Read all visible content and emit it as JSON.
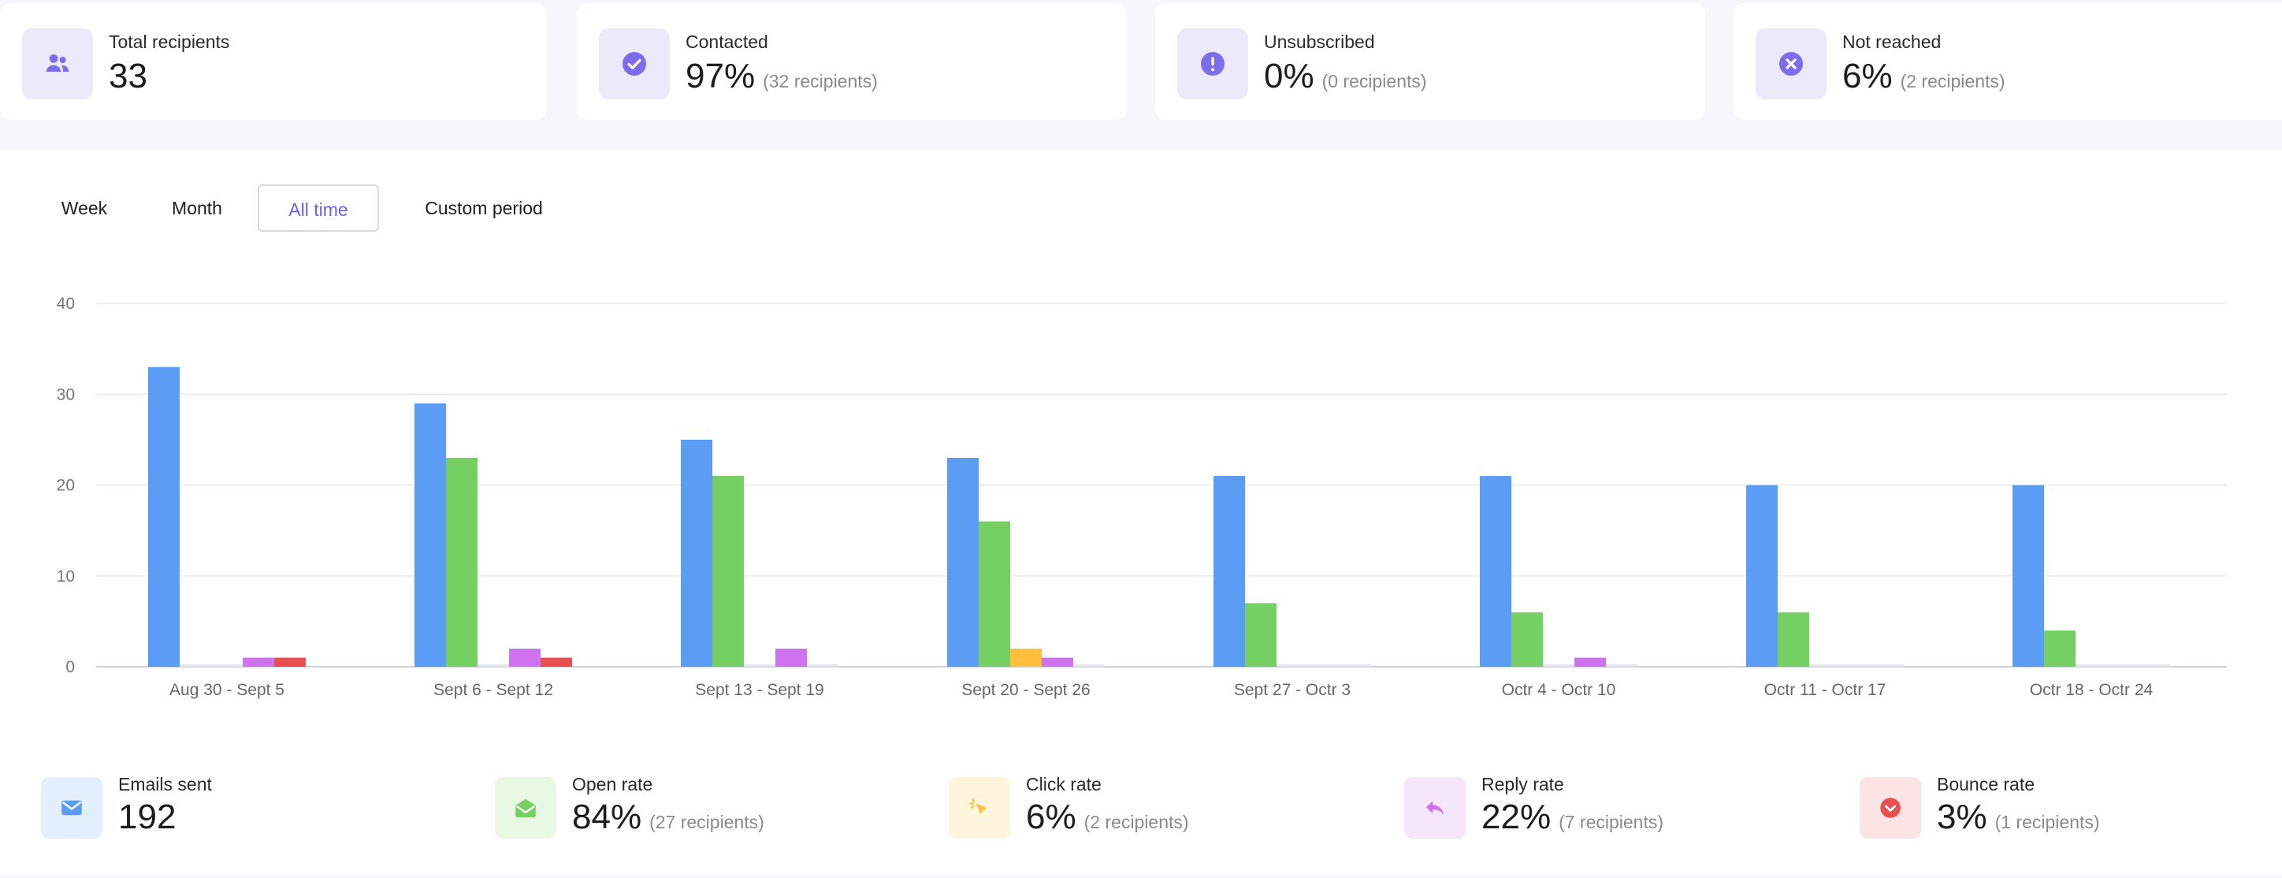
{
  "stats": [
    {
      "label": "Total recipients",
      "value": "33",
      "sub": "",
      "icon": "users-icon"
    },
    {
      "label": "Contacted",
      "value": "97%",
      "sub": "(32 recipients)",
      "icon": "check-circle-icon"
    },
    {
      "label": "Unsubscribed",
      "value": "0%",
      "sub": "(0 recipients)",
      "icon": "exclamation-circle-icon"
    },
    {
      "label": "Not reached",
      "value": "6%",
      "sub": "(2 recipients)",
      "icon": "x-circle-icon"
    }
  ],
  "period_tabs": [
    {
      "label": "Week",
      "active": false
    },
    {
      "label": "Month",
      "active": false
    },
    {
      "label": "All time",
      "active": true
    },
    {
      "label": "Custom period",
      "active": false
    }
  ],
  "colors": {
    "accent": "#6d5fe6",
    "emails_sent": "#5b9cf4",
    "open_rate": "#76cf63",
    "click_rate": "#ffbf3c",
    "reply_rate": "#cf72ee",
    "bounce_rate": "#ea4f4f"
  },
  "chart_data": {
    "type": "bar",
    "categories": [
      "Aug 30 - Sept 5",
      "Sept 6 - Sept 12",
      "Sept 13 - Sept 19",
      "Sept 20 - Sept 26",
      "Sept 27 - Octr 3",
      "Octr 4 - Octr 10",
      "Octr 11 - Octr 17",
      "Octr 18 - Octr 24"
    ],
    "series": [
      {
        "key": "emails_sent",
        "values": [
          33,
          29,
          25,
          23,
          21,
          21,
          20,
          20
        ]
      },
      {
        "key": "open_rate",
        "values": [
          0,
          23,
          21,
          16,
          7,
          6,
          6,
          4
        ]
      },
      {
        "key": "click_rate",
        "values": [
          0,
          0,
          0,
          2,
          0,
          0,
          0,
          0
        ]
      },
      {
        "key": "reply_rate",
        "values": [
          1,
          2,
          2,
          1,
          0,
          1,
          0,
          0
        ]
      },
      {
        "key": "bounce_rate",
        "values": [
          1,
          1,
          0,
          0,
          0,
          0,
          0,
          0
        ]
      }
    ],
    "yticks": [
      0,
      10,
      20,
      30,
      40
    ],
    "ylim": [
      0,
      40
    ],
    "grid": true,
    "legend": "bottom"
  },
  "metrics": [
    {
      "label": "Emails sent",
      "value": "192",
      "sub": "",
      "icon": "envelope-icon",
      "color": "#5b9cf4",
      "bg": "#e3efff"
    },
    {
      "label": "Open rate",
      "value": "84%",
      "sub": "(27 recipients)",
      "icon": "open-envelope-icon",
      "color": "#76cf63",
      "bg": "#e9f7e5"
    },
    {
      "label": "Click rate",
      "value": "6%",
      "sub": "(2 recipients)",
      "icon": "cursor-click-icon",
      "color": "#ffbf3c",
      "bg": "#fff4dc"
    },
    {
      "label": "Reply rate",
      "value": "22%",
      "sub": "(7 recipients)",
      "icon": "reply-arrow-icon",
      "color": "#cf72ee",
      "bg": "#f6e6fc"
    },
    {
      "label": "Bounce rate",
      "value": "3%",
      "sub": "(1 recipients)",
      "icon": "bounce-down-icon",
      "color": "#ea4f4f",
      "bg": "#fde4e4"
    }
  ]
}
